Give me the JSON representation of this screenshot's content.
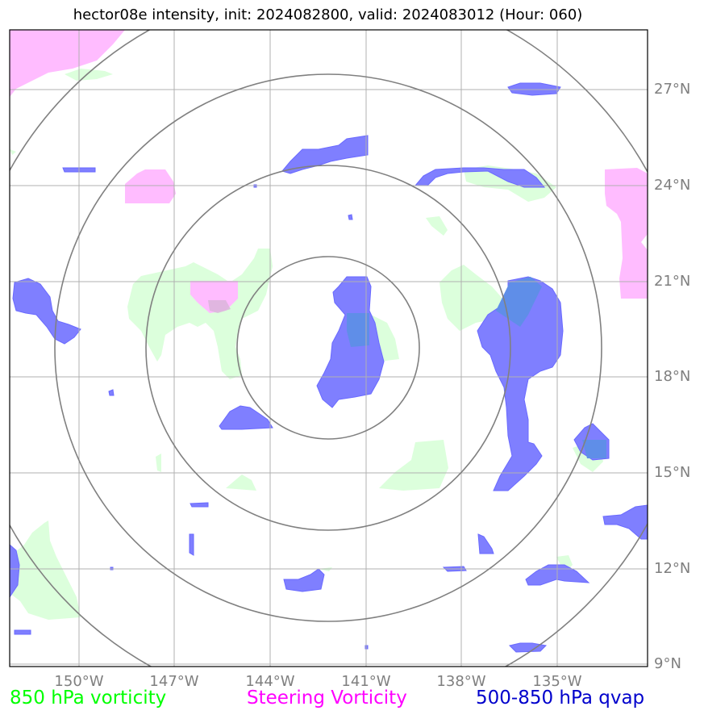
{
  "title": "hector08e intensity, init: 2024082800, valid: 2024083012 (Hour: 060)",
  "latitude_labels": [
    "27°N",
    "24°N",
    "21°N",
    "18°N",
    "15°N",
    "12°N",
    "9°N"
  ],
  "longitude_labels": [
    "150°W",
    "147°W",
    "144°W",
    "141°W",
    "138°W",
    "135°W"
  ],
  "legend": [
    {
      "label": "850 hPa vorticity",
      "color": "#00ff00"
    },
    {
      "label": "Steering Vorticity",
      "color": "#ff00ff"
    },
    {
      "label": "500-850 hPa qvap",
      "color": "#0000cc"
    }
  ],
  "colors": {
    "vorticity_850_fill": "#dcffdc",
    "steering_vorticity_fill": "#ffbcff",
    "qvap_fill": "#7f7fff",
    "grid": "#b0b0b0",
    "range_rings": "#808080"
  }
}
